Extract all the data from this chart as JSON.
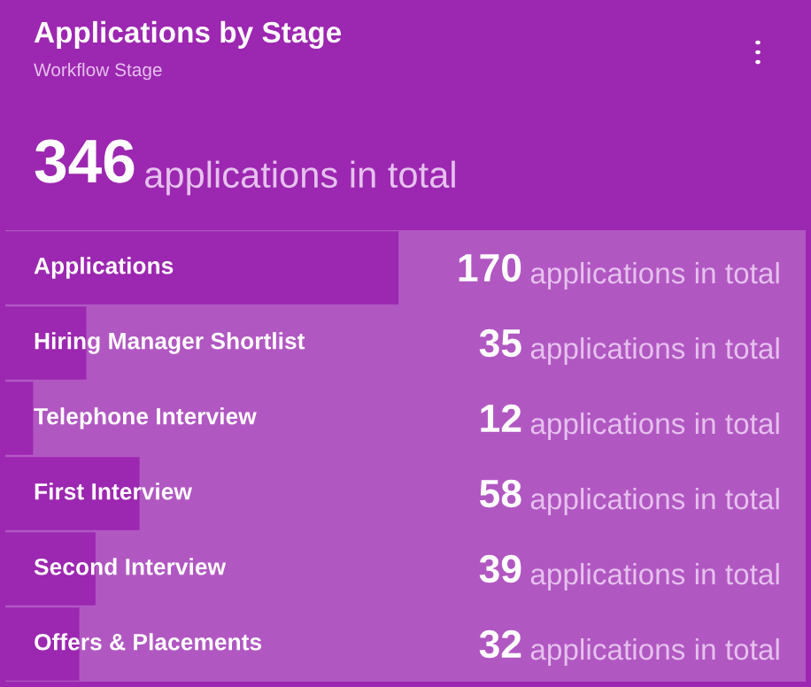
{
  "chart_data": {
    "type": "bar",
    "orientation": "horizontal",
    "title": "Applications by Stage",
    "subtitle": "Workflow Stage",
    "annotations": [
      "346 applications in total"
    ],
    "categories": [
      "Applications",
      "Hiring Manager Shortlist",
      "Telephone Interview",
      "First Interview",
      "Second Interview",
      "Offers & Placements"
    ],
    "values": [
      170,
      35,
      12,
      58,
      39,
      32
    ],
    "value_labels": [
      "170 applications in total",
      "35 applications in total",
      "12 applications in total",
      "58 applications in total",
      "39 applications in total",
      "32 applications in total"
    ],
    "color": "#9c27b0",
    "xlim": [
      0,
      346
    ],
    "tick_labels": "y"
  }
}
